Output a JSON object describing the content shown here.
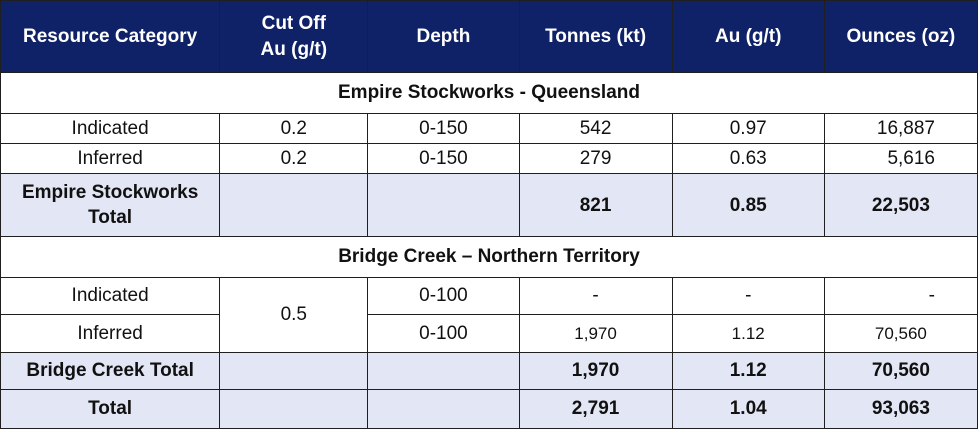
{
  "headers": [
    "Resource Category",
    "Cut Off Au (g/t)",
    "Depth",
    "Tonnes (kt)",
    "Au (g/t)",
    "Ounces (oz)"
  ],
  "header_cutoff_line1": "Cut Off",
  "header_cutoff_line2": "Au (g/t)",
  "sections": [
    {
      "title": "Empire Stockworks - Queensland",
      "rows": [
        {
          "category": "Indicated",
          "cutoff": "0.2",
          "depth": "0-150",
          "tonnes": "542",
          "au": "0.97",
          "ounces": "16,887"
        },
        {
          "category": "Inferred",
          "cutoff": "0.2",
          "depth": "0-150",
          "tonnes": "279",
          "au": "0.63",
          "ounces": "5,616"
        }
      ],
      "total": {
        "label_line1": "Empire Stockworks",
        "label_line2": "Total",
        "tonnes": "821",
        "au": "0.85",
        "ounces": "22,503"
      }
    },
    {
      "title": "Bridge Creek – Northern Territory",
      "cutoff": "0.5",
      "rows": [
        {
          "category": "Indicated",
          "depth": "0-100",
          "tonnes": "-",
          "au": "-",
          "ounces": "-"
        },
        {
          "category": "Inferred",
          "depth": "0-100",
          "tonnes": "1,970",
          "au": "1.12",
          "ounces": "70,560"
        }
      ],
      "total": {
        "label": "Bridge Creek Total",
        "tonnes": "1,970",
        "au": "1.12",
        "ounces": "70,560"
      }
    }
  ],
  "grand_total": {
    "label": "Total",
    "tonnes": "2,791",
    "au": "1.04",
    "ounces": "93,063"
  }
}
